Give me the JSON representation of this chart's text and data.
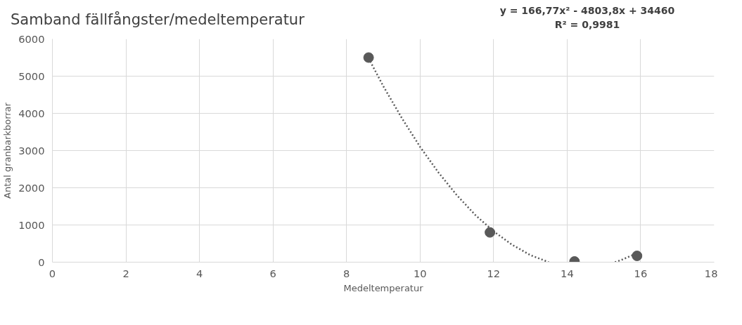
{
  "chart_data": {
    "type": "scatter",
    "title": "Samband fällfångster/medeltemperatur",
    "xlabel": "Medeltemperatur",
    "ylabel": "Antal granbarkborrar",
    "annotations": [
      "y = 166,77x² - 4803,8x + 34460",
      "R² = 0,9981"
    ],
    "series": [
      {
        "color": "#595959",
        "marker": "circle",
        "x": [
          8.6,
          11.9,
          14.2,
          15.9
        ],
        "values": [
          5500,
          800,
          20,
          170
        ]
      },
      {
        "type": "line",
        "color": "#595959",
        "line_style": "dotted",
        "marker": "none",
        "x": [
          8.6,
          9,
          9.5,
          10,
          10.5,
          11,
          11.5,
          12,
          12.5,
          13,
          13.5,
          14,
          15,
          15.3,
          15.5,
          15.9
        ],
        "values": [
          5480,
          4730,
          3880,
          3100,
          2410,
          1800,
          1270,
          830,
          470,
          190,
          0,
          null,
          null,
          0,
          70,
          240
        ]
      }
    ],
    "xlim": [
      0,
      18
    ],
    "xticks": [
      0,
      2,
      4,
      6,
      8,
      10,
      12,
      14,
      16,
      18
    ],
    "ylim": [
      0,
      6000
    ],
    "yticks": [
      0,
      1000,
      2000,
      3000,
      4000,
      5000,
      6000
    ],
    "grid": true
  }
}
